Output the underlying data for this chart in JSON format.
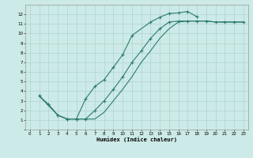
{
  "xlabel": "Humidex (Indice chaleur)",
  "bg_color": "#cceae7",
  "grid_color": "#aacfcc",
  "line_color": "#2e7d6e",
  "xlim": [
    -0.5,
    23.5
  ],
  "ylim": [
    0,
    13
  ],
  "xticks": [
    0,
    1,
    2,
    3,
    4,
    5,
    6,
    7,
    8,
    9,
    10,
    11,
    12,
    13,
    14,
    15,
    16,
    17,
    18,
    19,
    20,
    21,
    22,
    23
  ],
  "yticks": [
    0,
    1,
    2,
    3,
    4,
    5,
    6,
    7,
    8,
    9,
    10,
    11,
    12
  ],
  "curve1_x": [
    1,
    2,
    3,
    4,
    5,
    6,
    7,
    8,
    9,
    10,
    11,
    13,
    14,
    15,
    16,
    17,
    18
  ],
  "curve1_y": [
    3.5,
    2.6,
    1.5,
    1.1,
    1.1,
    3.2,
    4.5,
    5.2,
    6.5,
    7.8,
    9.8,
    11.2,
    11.7,
    12.1,
    12.15,
    12.3,
    11.75
  ],
  "curve2_x": [
    1,
    2,
    3,
    4,
    5,
    6,
    7,
    8,
    9,
    10,
    11,
    12,
    13,
    14,
    15,
    16,
    17,
    18,
    19,
    20,
    21,
    22,
    23
  ],
  "curve2_y": [
    3.5,
    2.6,
    1.5,
    1.1,
    1.1,
    1.1,
    2.0,
    3.0,
    4.2,
    5.5,
    7.0,
    8.2,
    9.5,
    10.5,
    11.2,
    11.3,
    11.3,
    11.3,
    11.3,
    11.2,
    11.2,
    11.2,
    11.2
  ],
  "curve3_x": [
    1,
    3,
    4,
    5,
    6,
    7,
    8,
    9,
    10,
    11,
    12,
    13,
    14,
    15,
    16,
    17,
    18,
    19,
    20,
    21,
    22,
    23
  ],
  "curve3_y": [
    3.5,
    1.5,
    1.1,
    1.1,
    1.1,
    1.1,
    1.8,
    3.0,
    4.2,
    5.5,
    7.0,
    8.2,
    9.5,
    10.5,
    11.2,
    11.3,
    11.3,
    11.3,
    11.2,
    11.2,
    11.2,
    11.2
  ]
}
